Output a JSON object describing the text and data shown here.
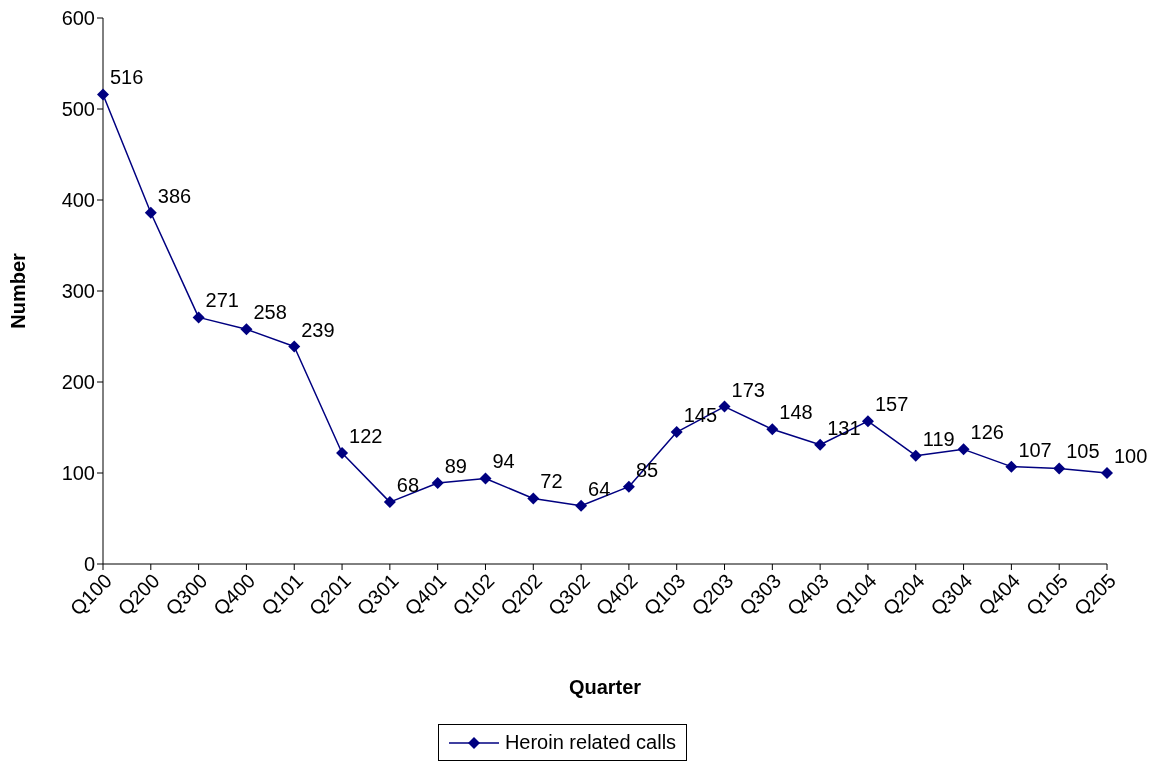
{
  "chart_data": {
    "type": "line",
    "xlabel": "Quarter",
    "ylabel": "Number",
    "categories": [
      "Q100",
      "Q200",
      "Q300",
      "Q400",
      "Q101",
      "Q201",
      "Q301",
      "Q401",
      "Q102",
      "Q202",
      "Q302",
      "Q402",
      "Q103",
      "Q203",
      "Q303",
      "Q403",
      "Q104",
      "Q204",
      "Q304",
      "Q404",
      "Q105",
      "Q205"
    ],
    "series": [
      {
        "name": "Heroin related calls",
        "color": "#000080",
        "values": [
          516,
          386,
          271,
          258,
          239,
          122,
          68,
          89,
          94,
          72,
          64,
          85,
          145,
          173,
          148,
          131,
          157,
          119,
          126,
          107,
          105,
          100
        ]
      }
    ],
    "ylim": [
      0,
      600
    ],
    "yticks": [
      0,
      100,
      200,
      300,
      400,
      500,
      600
    ],
    "grid": false,
    "legend": "bottom",
    "marker": "diamond",
    "data_labels": true
  }
}
